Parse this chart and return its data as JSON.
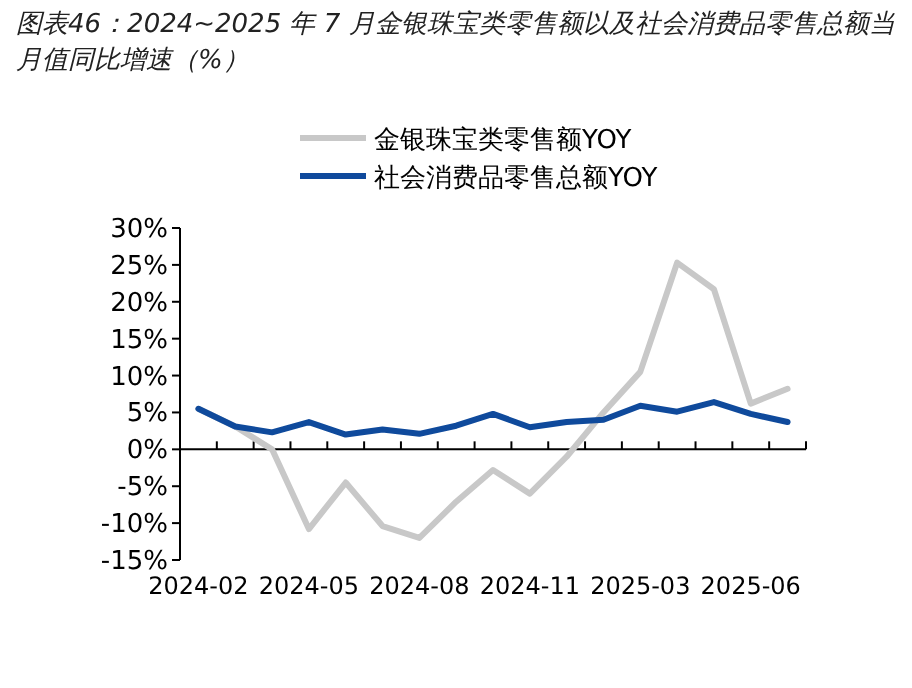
{
  "chart_data": {
    "type": "line",
    "title": "图表46：2024~2025 年 7 月金银珠宝类零售额以及社会消费品零售总额当月值同比增速（%）",
    "categories": [
      "2024-02",
      null,
      null,
      "2024-05",
      null,
      null,
      "2024-08",
      null,
      null,
      "2024-11",
      null,
      null,
      "2025-03",
      null,
      null,
      "2025-06",
      null
    ],
    "series": [
      {
        "name": "金银珠宝类零售额YOY",
        "color": "#c8c8c8",
        "values": [
          5.5,
          3.1,
          0.0,
          -10.8,
          -4.5,
          -10.4,
          -12.0,
          -7.1,
          -2.8,
          -6.0,
          -1.0,
          5.0,
          10.5,
          25.3,
          21.7,
          6.2,
          8.2
        ]
      },
      {
        "name": "社会消费品零售总额YOY",
        "color": "#0f4a9c",
        "values": [
          5.5,
          3.1,
          2.3,
          3.7,
          2.0,
          2.7,
          2.1,
          3.2,
          4.8,
          3.0,
          3.7,
          4.0,
          5.9,
          5.1,
          6.4,
          4.8,
          3.7
        ]
      }
    ],
    "ylim": [
      -15,
      30
    ],
    "yticks": [
      {
        "value": -15,
        "label": "-15%"
      },
      {
        "value": -10,
        "label": "-10%"
      },
      {
        "value": -5,
        "label": "-5%"
      },
      {
        "value": 0,
        "label": "0%"
      },
      {
        "value": 5,
        "label": "5%"
      },
      {
        "value": 10,
        "label": "10%"
      },
      {
        "value": 15,
        "label": "15%"
      },
      {
        "value": 20,
        "label": "20%"
      },
      {
        "value": 25,
        "label": "25%"
      },
      {
        "value": 30,
        "label": "30%"
      }
    ],
    "legend": "top",
    "marker": "none",
    "line_style": "solid"
  }
}
